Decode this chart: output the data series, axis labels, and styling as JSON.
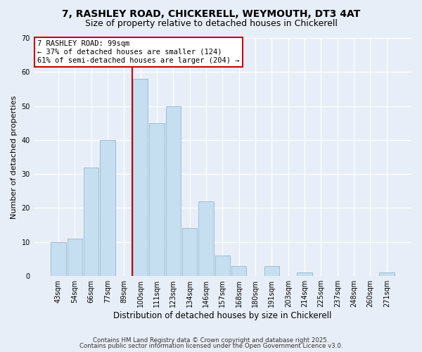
{
  "title_line1": "7, RASHLEY ROAD, CHICKERELL, WEYMOUTH, DT3 4AT",
  "title_line2": "Size of property relative to detached houses in Chickerell",
  "xlabel": "Distribution of detached houses by size in Chickerell",
  "ylabel": "Number of detached properties",
  "bar_labels": [
    "43sqm",
    "54sqm",
    "66sqm",
    "77sqm",
    "89sqm",
    "100sqm",
    "111sqm",
    "123sqm",
    "134sqm",
    "146sqm",
    "157sqm",
    "168sqm",
    "180sqm",
    "191sqm",
    "203sqm",
    "214sqm",
    "225sqm",
    "237sqm",
    "248sqm",
    "260sqm",
    "271sqm"
  ],
  "bar_values": [
    10,
    11,
    32,
    40,
    0,
    58,
    45,
    50,
    14,
    22,
    6,
    3,
    0,
    3,
    0,
    1,
    0,
    0,
    0,
    0,
    1
  ],
  "bar_color": "#c5dff0",
  "bar_edge_color": "#9bbdd4",
  "vline_x": 4.5,
  "vline_color": "#cc0000",
  "annotation_title": "7 RASHLEY ROAD: 99sqm",
  "annotation_line2": "← 37% of detached houses are smaller (124)",
  "annotation_line3": "61% of semi-detached houses are larger (204) →",
  "annotation_box_facecolor": "#ffffff",
  "annotation_box_edgecolor": "#cc0000",
  "ylim": [
    0,
    70
  ],
  "yticks": [
    0,
    10,
    20,
    30,
    40,
    50,
    60,
    70
  ],
  "footer_line1": "Contains HM Land Registry data © Crown copyright and database right 2025.",
  "footer_line2": "Contains public sector information licensed under the Open Government Licence v3.0.",
  "background_color": "#e8eef8",
  "grid_color": "#ffffff"
}
